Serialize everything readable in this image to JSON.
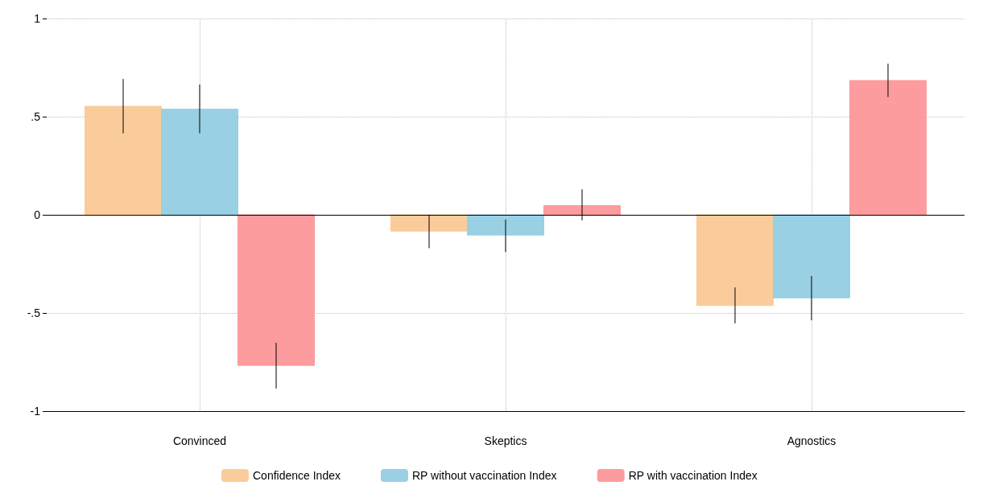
{
  "chart_data": {
    "type": "bar",
    "categories": [
      "Convinced",
      "Skeptics",
      "Agnostics"
    ],
    "series": [
      {
        "name": "Confidence Index",
        "color": "#fbc996",
        "values": [
          0.553,
          -0.083,
          -0.462
        ],
        "errors": [
          [
            0.415,
            0.692
          ],
          [
            -0.17,
            0.0
          ],
          [
            -0.553,
            -0.37
          ]
        ]
      },
      {
        "name": "RP without vaccination Index",
        "color": "#95cde2",
        "values": [
          0.538,
          -0.103,
          -0.423
        ],
        "errors": [
          [
            0.415,
            0.664
          ],
          [
            -0.19,
            -0.024
          ],
          [
            -0.538,
            -0.312
          ]
        ]
      },
      {
        "name": "RP with vaccination Index",
        "color": "#fd9799",
        "values": [
          -0.767,
          0.047,
          0.684
        ],
        "errors": [
          [
            -0.885,
            -0.652
          ],
          [
            -0.028,
            0.13
          ],
          [
            0.6,
            0.77
          ]
        ]
      }
    ],
    "ylim": [
      -1,
      1
    ],
    "yticks": [
      -1,
      {
        "value": -0.5,
        "label": "-.5"
      },
      0,
      {
        "value": 0.5,
        "label": ".5"
      },
      1
    ],
    "ref_lines": [
      {
        "axis": "y",
        "value": 0,
        "color": "#000000"
      }
    ],
    "grid": true,
    "legend": "bottom"
  }
}
